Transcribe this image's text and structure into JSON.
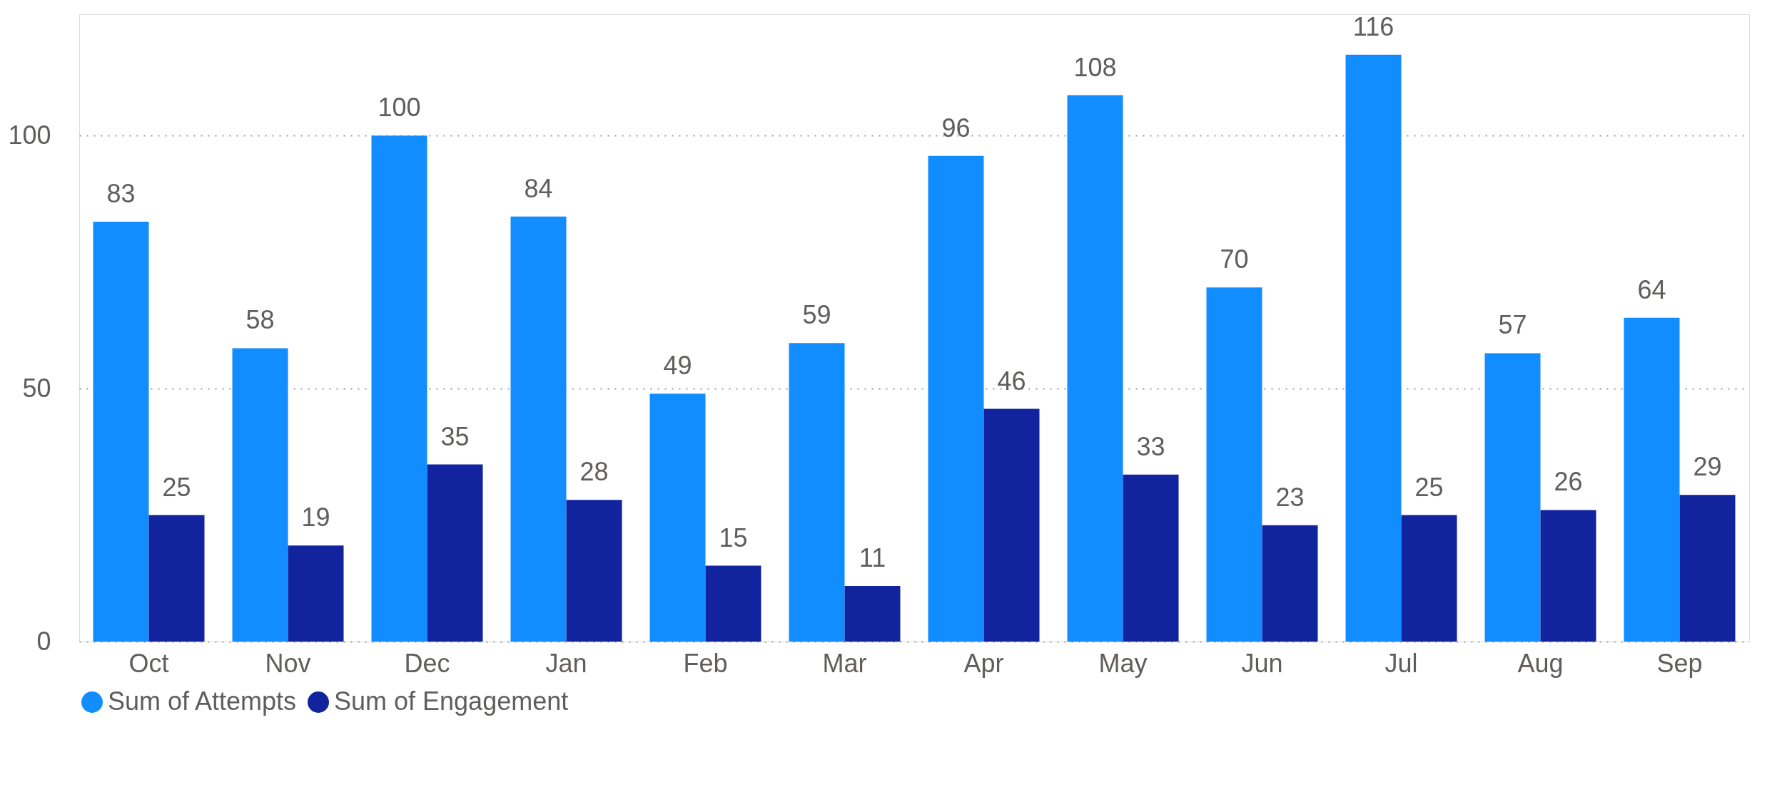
{
  "chart_data": {
    "type": "bar",
    "categories": [
      "Oct",
      "Nov",
      "Dec",
      "Jan",
      "Feb",
      "Mar",
      "Apr",
      "May",
      "Jun",
      "Jul",
      "Aug",
      "Sep"
    ],
    "series": [
      {
        "name": "Sum of Attempts",
        "color": "#118dff",
        "values": [
          83,
          58,
          100,
          84,
          49,
          59,
          96,
          108,
          70,
          116,
          57,
          64
        ]
      },
      {
        "name": "Sum of Engagement",
        "color": "#12239e",
        "values": [
          25,
          19,
          35,
          28,
          15,
          11,
          46,
          33,
          23,
          25,
          26,
          29
        ]
      }
    ],
    "ylim": [
      0,
      124
    ],
    "yticks": [
      0,
      50,
      100
    ],
    "grid": "y",
    "legend": "bottom",
    "data_labels": true
  }
}
